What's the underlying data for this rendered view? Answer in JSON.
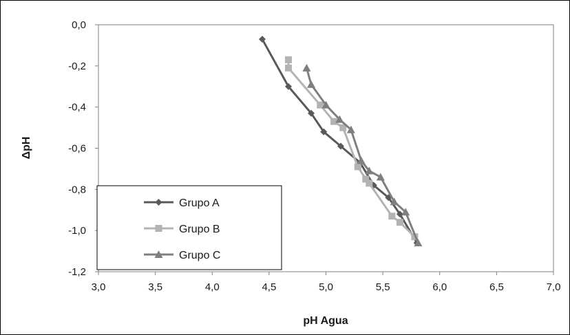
{
  "chart_data": {
    "type": "line",
    "title": "",
    "xlabel": "pH Agua",
    "ylabel": "ΔpH",
    "xlim": [
      3.0,
      7.0
    ],
    "ylim": [
      -1.2,
      0.0
    ],
    "x_ticks": [
      "3,0",
      "3,5",
      "4,0",
      "4,5",
      "5,0",
      "5,5",
      "6,0",
      "6,5",
      "7,0"
    ],
    "y_ticks": [
      "0,0",
      "-0,2",
      "-0,4",
      "-0,6",
      "-0,8",
      "-1,0",
      "-1,2"
    ],
    "grid": false,
    "legend_position": "bottom-left",
    "series": [
      {
        "name": "Grupo A",
        "marker": "diamond",
        "color": "#595959",
        "points": [
          [
            4.44,
            -0.07
          ],
          [
            4.67,
            -0.3
          ],
          [
            4.87,
            -0.43
          ],
          [
            4.98,
            -0.52
          ],
          [
            5.13,
            -0.59
          ],
          [
            5.3,
            -0.67
          ],
          [
            5.42,
            -0.78
          ],
          [
            5.55,
            -0.84
          ],
          [
            5.65,
            -0.92
          ],
          [
            5.8,
            -1.06
          ]
        ]
      },
      {
        "name": "Grupo B",
        "marker": "square",
        "color": "#b3b3b3",
        "points": [
          [
            4.67,
            -0.17
          ],
          [
            4.67,
            -0.21
          ],
          [
            4.95,
            -0.39
          ],
          [
            5.07,
            -0.47
          ],
          [
            5.15,
            -0.5
          ],
          [
            5.28,
            -0.69
          ],
          [
            5.35,
            -0.75
          ],
          [
            5.38,
            -0.77
          ],
          [
            5.58,
            -0.93
          ],
          [
            5.65,
            -0.96
          ],
          [
            5.78,
            -1.03
          ]
        ]
      },
      {
        "name": "Grupo C",
        "marker": "triangle",
        "color": "#7f7f7f",
        "points": [
          [
            4.83,
            -0.21
          ],
          [
            4.87,
            -0.29
          ],
          [
            5.0,
            -0.39
          ],
          [
            5.12,
            -0.46
          ],
          [
            5.22,
            -0.51
          ],
          [
            5.31,
            -0.66
          ],
          [
            5.38,
            -0.71
          ],
          [
            5.48,
            -0.74
          ],
          [
            5.6,
            -0.86
          ],
          [
            5.7,
            -0.91
          ],
          [
            5.81,
            -1.06
          ]
        ]
      }
    ]
  }
}
